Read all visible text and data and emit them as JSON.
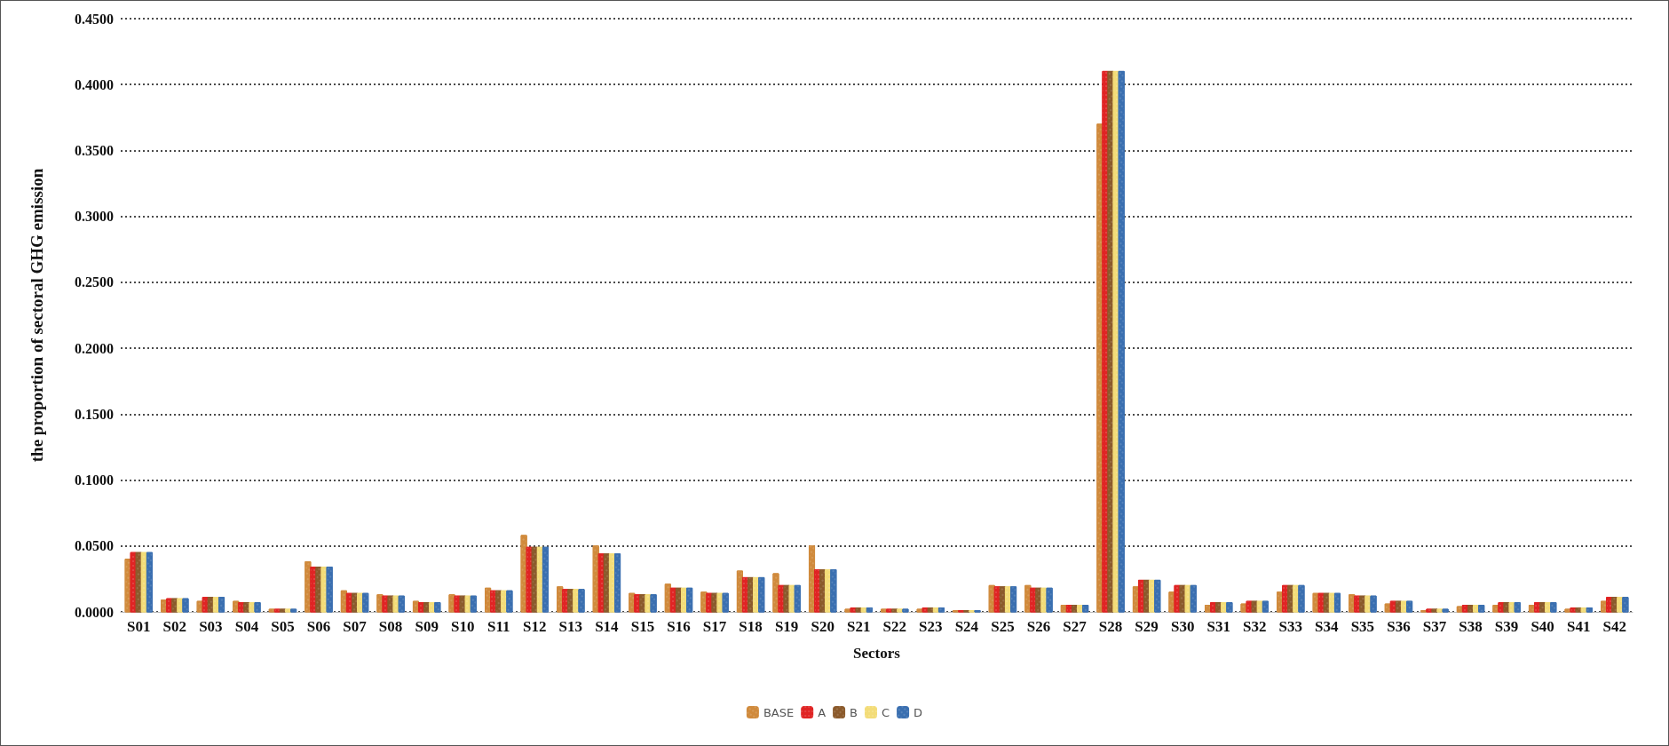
{
  "chart_data": {
    "type": "bar",
    "xlabel": "Sectors",
    "ylabel": "the proportion of sectoral GHG emission",
    "categories": [
      "S01",
      "S02",
      "S03",
      "S04",
      "S05",
      "S06",
      "S07",
      "S08",
      "S09",
      "S10",
      "S11",
      "S12",
      "S13",
      "S14",
      "S15",
      "S16",
      "S17",
      "S18",
      "S19",
      "S20",
      "S21",
      "S22",
      "S23",
      "S24",
      "S25",
      "S26",
      "S27",
      "S28",
      "S29",
      "S30",
      "S31",
      "S32",
      "S33",
      "S34",
      "S35",
      "S36",
      "S37",
      "S38",
      "S39",
      "S40",
      "S41",
      "S42"
    ],
    "series": [
      {
        "name": "BASE",
        "color": "#d08a3c",
        "values": [
          0.04,
          0.009,
          0.008,
          0.008,
          0.002,
          0.038,
          0.016,
          0.013,
          0.008,
          0.013,
          0.018,
          0.058,
          0.019,
          0.05,
          0.014,
          0.021,
          0.015,
          0.031,
          0.029,
          0.05,
          0.002,
          0.002,
          0.002,
          0.001,
          0.02,
          0.02,
          0.005,
          0.37,
          0.019,
          0.015,
          0.005,
          0.006,
          0.015,
          0.014,
          0.013,
          0.006,
          0.001,
          0.004,
          0.005,
          0.005,
          0.002,
          0.008
        ]
      },
      {
        "name": "A",
        "color": "#e02424",
        "values": [
          0.045,
          0.01,
          0.011,
          0.007,
          0.002,
          0.034,
          0.014,
          0.012,
          0.007,
          0.012,
          0.016,
          0.049,
          0.017,
          0.044,
          0.013,
          0.018,
          0.014,
          0.026,
          0.02,
          0.032,
          0.003,
          0.002,
          0.003,
          0.001,
          0.019,
          0.018,
          0.005,
          0.41,
          0.024,
          0.02,
          0.007,
          0.008,
          0.02,
          0.014,
          0.012,
          0.008,
          0.002,
          0.005,
          0.007,
          0.007,
          0.003,
          0.011
        ]
      },
      {
        "name": "B",
        "color": "#8b5a2b",
        "values": [
          0.045,
          0.01,
          0.011,
          0.007,
          0.002,
          0.034,
          0.014,
          0.012,
          0.007,
          0.012,
          0.016,
          0.049,
          0.017,
          0.044,
          0.013,
          0.018,
          0.014,
          0.026,
          0.02,
          0.032,
          0.003,
          0.002,
          0.003,
          0.001,
          0.019,
          0.018,
          0.005,
          0.41,
          0.024,
          0.02,
          0.007,
          0.008,
          0.02,
          0.014,
          0.012,
          0.008,
          0.002,
          0.005,
          0.007,
          0.007,
          0.003,
          0.011
        ]
      },
      {
        "name": "C",
        "color": "#f3dc78",
        "values": [
          0.045,
          0.01,
          0.011,
          0.007,
          0.002,
          0.034,
          0.014,
          0.012,
          0.007,
          0.012,
          0.016,
          0.049,
          0.017,
          0.044,
          0.013,
          0.018,
          0.014,
          0.026,
          0.02,
          0.032,
          0.003,
          0.002,
          0.003,
          0.001,
          0.019,
          0.018,
          0.005,
          0.41,
          0.024,
          0.02,
          0.007,
          0.008,
          0.02,
          0.014,
          0.012,
          0.008,
          0.002,
          0.005,
          0.007,
          0.007,
          0.003,
          0.011
        ]
      },
      {
        "name": "D",
        "color": "#3a6fb0",
        "values": [
          0.045,
          0.01,
          0.011,
          0.007,
          0.002,
          0.034,
          0.014,
          0.012,
          0.007,
          0.012,
          0.016,
          0.049,
          0.017,
          0.044,
          0.013,
          0.018,
          0.014,
          0.026,
          0.02,
          0.032,
          0.003,
          0.002,
          0.003,
          0.001,
          0.019,
          0.018,
          0.005,
          0.41,
          0.024,
          0.02,
          0.007,
          0.008,
          0.02,
          0.014,
          0.012,
          0.008,
          0.002,
          0.005,
          0.007,
          0.007,
          0.003,
          0.011
        ]
      }
    ],
    "ylim": [
      0,
      0.45
    ],
    "yticks": [
      {
        "value": 0,
        "label": "0.0000"
      },
      {
        "value": 0.05,
        "label": "0.0500"
      },
      {
        "value": 0.1,
        "label": "0.1000"
      },
      {
        "value": 0.15,
        "label": "0.1500"
      },
      {
        "value": 0.2,
        "label": "0.2000"
      },
      {
        "value": 0.25,
        "label": "0.2500"
      },
      {
        "value": 0.3,
        "label": "0.3000"
      },
      {
        "value": 0.35,
        "label": "0.3500"
      },
      {
        "value": 0.4,
        "label": "0.4000"
      },
      {
        "value": 0.45,
        "label": "0.4500"
      }
    ],
    "grid": "y",
    "legend": "bottom"
  }
}
